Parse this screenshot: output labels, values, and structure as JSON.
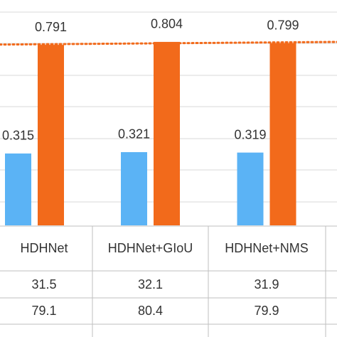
{
  "chart_data": {
    "type": "bar",
    "categories": [
      "HDHNet",
      "HDHNet+GIoU",
      "HDHNet+NMS"
    ],
    "series": [
      {
        "color": "#5bb3f5",
        "values": [
          0.315,
          0.321,
          0.319
        ]
      },
      {
        "color": "#f26a1b",
        "values": [
          0.791,
          0.804,
          0.799
        ]
      }
    ],
    "table_rows": [
      [
        31.5,
        32.1,
        31.9
      ],
      [
        79.1,
        80.4,
        79.9
      ]
    ]
  }
}
